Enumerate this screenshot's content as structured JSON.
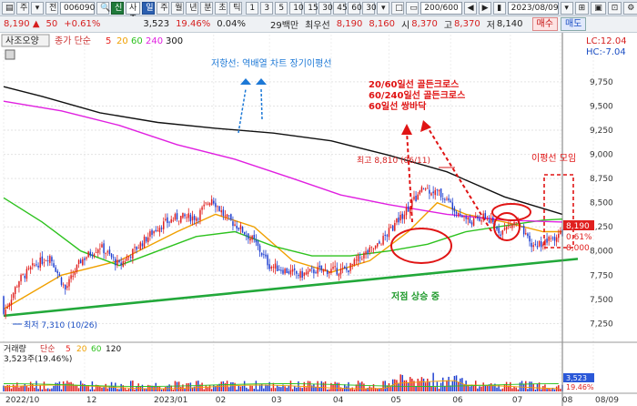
{
  "toolbar": {
    "left_buttons": [
      "▤",
      "주",
      "▾",
      "전"
    ],
    "code_input": "006090",
    "search_icon": "🔍",
    "stock_badge": "신",
    "stock_name": "사조오양",
    "period_buttons": [
      "일",
      "주",
      "월",
      "년",
      "분",
      "초",
      "틱"
    ],
    "interval_buttons": [
      "1",
      "3",
      "5",
      "10",
      "15",
      "30",
      "45",
      "60"
    ],
    "extra_buttons": [
      "30",
      "▾",
      "□",
      "▭"
    ],
    "range": "200/600",
    "nav_buttons": [
      "◀",
      "▶",
      "▮"
    ],
    "date": "2023/08/09",
    "right_buttons": [
      "▾",
      "⊞",
      "▣",
      "⊡",
      "⚙"
    ]
  },
  "infobar": {
    "price": "8,190",
    "arrow": "▲",
    "change": "50",
    "change_pct": "+0.61%",
    "volume": "3,523",
    "vol_ratio": "19.46%",
    "turnover": "0.04%",
    "trade_amount": "29백만",
    "pref_label": "최우선",
    "ask": "8,190",
    "bid": "8,160",
    "open_label": "시",
    "open": "8,370",
    "high_label": "고",
    "high": "8,370",
    "low_label": "저",
    "low": "8,140",
    "buy_button": "매수",
    "sell_button": "매도"
  },
  "legend": {
    "name": "사조오양",
    "ma_label": "종가 단순",
    "ma_periods": [
      "5",
      "20",
      "60",
      "240",
      "300"
    ],
    "ma_colors": [
      "#e8231f",
      "#f0a000",
      "#2ec21f",
      "#e020e0",
      "#111111"
    ]
  },
  "right_labels": {
    "lc": "LC:12.04",
    "hc": "HC:-7.04"
  },
  "price_axis": [
    "9,750",
    "9,500",
    "9,250",
    "9,000",
    "8,750",
    "8,500",
    "8,250",
    "8,000",
    "7,750",
    "7,500",
    "7,250"
  ],
  "price_tags": {
    "current": "8,190",
    "change": "0.61%",
    "low_tag": "8,000"
  },
  "annotations": {
    "resistance": "저항선: 역배열 차트 장기이평선",
    "cross1": "20/60일선 골든크로스",
    "cross2": "60/240일선 골든크로스",
    "cross3": "60일선 쌍바닥",
    "high_mark": "최고 8,810 (06/11)",
    "low_mark": "최저 7,310 (10/26)",
    "ma_gather": "이평선 모임",
    "low_rising": "저점 상승 중"
  },
  "volume_panel": {
    "legend_name": "거래량",
    "ma_label": "단순",
    "periods": [
      "5",
      "20",
      "60",
      "120"
    ],
    "colors": [
      "#e8231f",
      "#f0a000",
      "#2ec21f",
      "#111111"
    ],
    "value": "3,523주(19.46%)",
    "tag_value": "3,523",
    "tag_pct": "19.46%"
  },
  "date_axis": [
    "2022/10",
    "12",
    "2023/01",
    "02",
    "03",
    "04",
    "05",
    "06",
    "07",
    "08",
    "08/09"
  ],
  "chart_data": {
    "type": "candlestick",
    "start_close": 7530,
    "ylim": [
      7150,
      9900
    ],
    "closes_anchor": [
      [
        0,
        7350
      ],
      [
        8,
        7700
      ],
      [
        16,
        7850
      ],
      [
        24,
        7950
      ],
      [
        32,
        7600
      ],
      [
        40,
        7900
      ],
      [
        50,
        8050
      ],
      [
        60,
        7850
      ],
      [
        70,
        8050
      ],
      [
        80,
        8250
      ],
      [
        90,
        8350
      ],
      [
        100,
        8350
      ],
      [
        108,
        8550
      ],
      [
        115,
        8350
      ],
      [
        122,
        8250
      ],
      [
        130,
        8100
      ],
      [
        138,
        7850
      ],
      [
        146,
        7800
      ],
      [
        154,
        7750
      ],
      [
        162,
        7800
      ],
      [
        170,
        7800
      ],
      [
        178,
        7800
      ],
      [
        186,
        7950
      ],
      [
        194,
        8050
      ],
      [
        202,
        8250
      ],
      [
        210,
        8450
      ],
      [
        218,
        8650
      ],
      [
        226,
        8600
      ],
      [
        234,
        8450
      ],
      [
        242,
        8300
      ],
      [
        250,
        8350
      ],
      [
        258,
        8200
      ],
      [
        266,
        8300
      ],
      [
        274,
        8050
      ],
      [
        282,
        8100
      ],
      [
        290,
        8190
      ]
    ],
    "ma_lines": {
      "ma20": [
        [
          0,
          7400
        ],
        [
          30,
          7750
        ],
        [
          60,
          7900
        ],
        [
          90,
          8200
        ],
        [
          110,
          8380
        ],
        [
          130,
          8250
        ],
        [
          150,
          7900
        ],
        [
          170,
          7780
        ],
        [
          190,
          7900
        ],
        [
          210,
          8200
        ],
        [
          225,
          8500
        ],
        [
          240,
          8380
        ],
        [
          260,
          8300
        ],
        [
          280,
          8200
        ],
        [
          290,
          8200
        ]
      ],
      "ma60": [
        [
          0,
          8550
        ],
        [
          20,
          8300
        ],
        [
          40,
          8000
        ],
        [
          60,
          7850
        ],
        [
          80,
          8000
        ],
        [
          100,
          8150
        ],
        [
          120,
          8200
        ],
        [
          140,
          8050
        ],
        [
          160,
          7950
        ],
        [
          180,
          7950
        ],
        [
          200,
          8000
        ],
        [
          220,
          8070
        ],
        [
          240,
          8200
        ],
        [
          260,
          8260
        ],
        [
          280,
          8320
        ],
        [
          290,
          8330
        ]
      ],
      "ma240": [
        [
          0,
          9550
        ],
        [
          30,
          9450
        ],
        [
          60,
          9300
        ],
        [
          90,
          9100
        ],
        [
          120,
          8950
        ],
        [
          150,
          8750
        ],
        [
          175,
          8580
        ],
        [
          200,
          8480
        ],
        [
          230,
          8380
        ],
        [
          260,
          8320
        ],
        [
          290,
          8300
        ]
      ],
      "ma300": [
        [
          0,
          9700
        ],
        [
          20,
          9600
        ],
        [
          50,
          9430
        ],
        [
          80,
          9330
        ],
        [
          110,
          9270
        ],
        [
          140,
          9220
        ],
        [
          170,
          9140
        ],
        [
          200,
          8990
        ],
        [
          230,
          8820
        ],
        [
          260,
          8560
        ],
        [
          290,
          8380
        ]
      ]
    },
    "trendline": [
      [
        0,
        7330
      ],
      [
        290,
        7900
      ]
    ]
  }
}
